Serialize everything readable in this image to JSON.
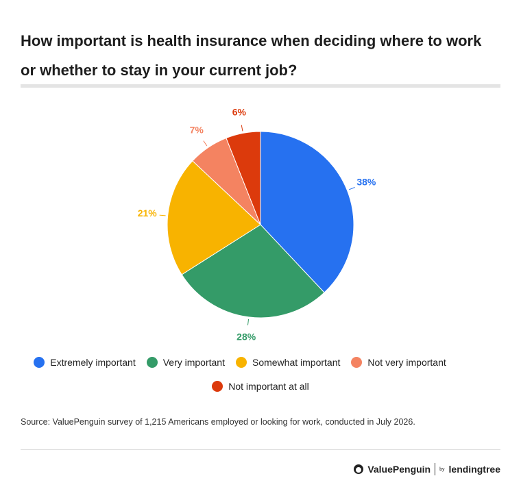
{
  "chart_data": {
    "type": "pie",
    "title": "How important is health insurance when deciding where to work or whether to stay in your current job?",
    "categories": [
      "Extremely important",
      "Very important",
      "Somewhat important",
      "Not very important",
      "Not important at all"
    ],
    "values": [
      38,
      28,
      21,
      7,
      6
    ],
    "value_labels": [
      "38%",
      "28%",
      "21%",
      "7%",
      "6%"
    ],
    "colors": [
      "#2671f0",
      "#349b68",
      "#f8b300",
      "#f48361",
      "#dc3a0c"
    ],
    "legend": "bottom",
    "source": "Source: ValuePenguin survey of 1,215 Americans employed or looking for work, conducted in July 2026."
  },
  "logo": {
    "brand": "ValuePenguin",
    "by": "by",
    "partner": "lendingtree"
  }
}
